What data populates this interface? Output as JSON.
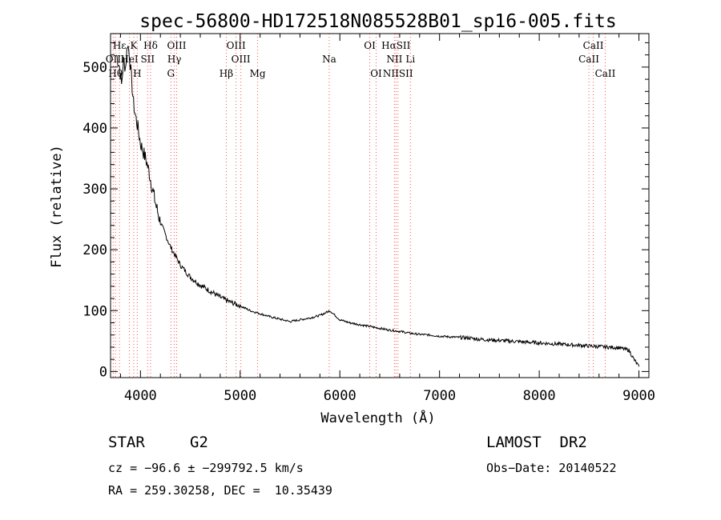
{
  "chart_data": {
    "type": "line",
    "title": "spec-56800-HD172518N085528B01_sp16-005.fits",
    "xlabel": "Wavelength (Å)",
    "ylabel": "Flux (relative)",
    "xlim": [
      3700,
      9100
    ],
    "ylim": [
      -10,
      555
    ],
    "xticks": [
      4000,
      5000,
      6000,
      7000,
      8000,
      9000
    ],
    "yticks": [
      0,
      100,
      200,
      300,
      400,
      500
    ],
    "grid": false,
    "line_color": "#000000",
    "marker_color": "#ff5050",
    "series": [
      {
        "x": [
          3760,
          3790,
          3810,
          3830,
          3850,
          3870,
          3890,
          3910,
          3930,
          3950,
          3975,
          4000,
          4030,
          4060,
          4090,
          4120,
          4160,
          4200,
          4250,
          4300,
          4350,
          4400,
          4450,
          4500,
          4600,
          4700,
          4800,
          4900,
          5000,
          5100,
          5200,
          5300,
          5400,
          5500,
          5600,
          5700,
          5800,
          5900,
          6000,
          6100,
          6200,
          6300,
          6400,
          6500,
          6600,
          6700,
          6800,
          6900,
          7000,
          7100,
          7200,
          7300,
          7400,
          7500,
          7600,
          7700,
          7800,
          7900,
          8000,
          8100,
          8200,
          8300,
          8400,
          8500,
          8600,
          8700,
          8800,
          8900,
          8950,
          9000
        ],
        "y": [
          520,
          500,
          470,
          510,
          500,
          540,
          520,
          480,
          440,
          420,
          400,
          375,
          360,
          345,
          325,
          300,
          270,
          245,
          225,
          205,
          190,
          175,
          165,
          155,
          142,
          132,
          122,
          114,
          108,
          100,
          95,
          90,
          86,
          82,
          85,
          88,
          92,
          100,
          85,
          80,
          77,
          74,
          71,
          68,
          66,
          63,
          61,
          60,
          58,
          57,
          56,
          55,
          53,
          52,
          51,
          50,
          49,
          48,
          47,
          46,
          45,
          44,
          43,
          42,
          41,
          40,
          39,
          35,
          20,
          8
        ]
      }
    ],
    "spectral_lines": [
      {
        "label": "Hε",
        "x": 3790,
        "row": 0
      },
      {
        "label": "K",
        "x": 3933,
        "row": 0
      },
      {
        "label": "Hδ",
        "x": 4102,
        "row": 0
      },
      {
        "label": "OIII",
        "x": 4363,
        "row": 0
      },
      {
        "label": "OIII",
        "x": 4959,
        "row": 0
      },
      {
        "label": "OI",
        "x": 6300,
        "row": 0
      },
      {
        "label": "HαSII",
        "x": 6563,
        "row": 0
      },
      {
        "label": "CaII",
        "x": 8542,
        "row": 0
      },
      {
        "label": "OII",
        "x": 3727,
        "row": 1
      },
      {
        "label": "HeI",
        "x": 3889,
        "row": 1
      },
      {
        "label": "SII",
        "x": 4072,
        "row": 1
      },
      {
        "label": "Hγ",
        "x": 4340,
        "row": 1
      },
      {
        "label": "OIII",
        "x": 5007,
        "row": 1
      },
      {
        "label": "Na",
        "x": 5893,
        "row": 1
      },
      {
        "label": "NII",
        "x": 6548,
        "row": 1
      },
      {
        "label": "Li",
        "x": 6708,
        "row": 1
      },
      {
        "label": "CaII",
        "x": 8498,
        "row": 1
      },
      {
        "label": "Hθ",
        "x": 3750,
        "row": 2
      },
      {
        "label": "H",
        "x": 3968,
        "row": 2
      },
      {
        "label": "G",
        "x": 4305,
        "row": 2
      },
      {
        "label": "Hβ",
        "x": 4861,
        "row": 2
      },
      {
        "label": "Mg",
        "x": 5175,
        "row": 2
      },
      {
        "label": "OI",
        "x": 6364,
        "row": 2
      },
      {
        "label": "NIISII",
        "x": 6583,
        "row": 2
      },
      {
        "label": "CaII",
        "x": 8662,
        "row": 2
      }
    ]
  },
  "info": {
    "obj_class": "STAR",
    "subclass": "G2",
    "survey": "LAMOST  DR2",
    "cz": "cz = −96.6 ± −299792.5 km/s",
    "obs_date": "Obs−Date: 20140522",
    "radec": "RA = 259.30258, DEC =  10.35439"
  }
}
